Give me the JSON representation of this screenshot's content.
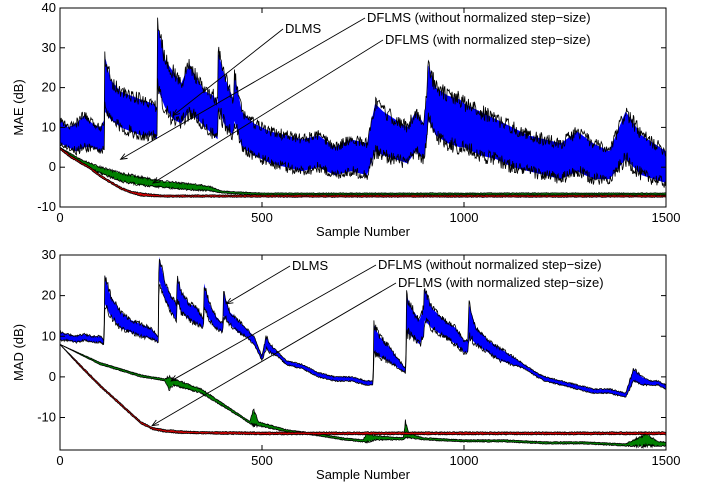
{
  "chart_data": [
    {
      "type": "line",
      "xlabel": "Sample Number",
      "ylabel": "MAE (dB)",
      "xlim": [
        0,
        1500
      ],
      "ylim": [
        -10,
        40
      ],
      "xticks": [
        0,
        500,
        1000,
        1500
      ],
      "yticks": [
        -10,
        0,
        10,
        20,
        30,
        40
      ],
      "grid": false,
      "annotations": [
        {
          "text": "DLMS",
          "target": [
            280,
            13
          ]
        },
        {
          "text": "DFLMS (without normalized step−size)",
          "target": [
            150,
            2
          ]
        },
        {
          "text": "DFLMS (with normalized step−size)",
          "target": [
            230,
            -4
          ]
        }
      ],
      "series": [
        {
          "color": "#0000ff",
          "x": [
            0,
            20,
            40,
            60,
            80,
            100,
            110,
            111,
            125,
            150,
            175,
            200,
            230,
            240,
            241,
            260,
            280,
            300,
            320,
            340,
            360,
            380,
            390,
            391,
            410,
            430,
            431,
            450,
            480,
            520,
            560,
            600,
            640,
            680,
            720,
            760,
            780,
            800,
            830,
            860,
            880,
            900,
            910,
            911,
            930,
            960,
            990,
            1000,
            1040,
            1080,
            1120,
            1160,
            1200,
            1240,
            1280,
            1320,
            1360,
            1400,
            1440,
            1470,
            1500
          ],
          "upper": [
            12,
            10,
            11,
            13,
            11,
            10,
            12,
            28,
            22,
            19,
            18,
            17,
            16,
            15,
            36,
            27,
            24,
            21,
            26,
            22,
            19,
            18,
            16,
            29,
            22,
            17,
            24,
            14,
            11,
            9,
            8,
            7,
            8,
            5,
            7,
            6,
            16,
            14,
            12,
            10,
            14,
            11,
            20,
            26,
            20,
            18,
            17,
            16,
            14,
            12,
            10,
            8,
            7,
            6,
            9,
            6,
            4,
            14,
            8,
            6,
            4
          ],
          "lower": [
            6,
            5,
            4,
            5,
            5,
            4,
            5,
            14,
            12,
            10,
            9,
            8,
            8,
            7,
            20,
            15,
            12,
            11,
            14,
            12,
            10,
            8,
            7,
            15,
            10,
            8,
            12,
            5,
            3,
            1,
            0,
            -1,
            0,
            -2,
            -1,
            -2,
            4,
            3,
            2,
            1,
            4,
            2,
            8,
            12,
            8,
            6,
            5,
            5,
            3,
            2,
            0,
            -1,
            -2,
            -3,
            -1,
            -3,
            -3,
            2,
            -2,
            -3,
            -4
          ]
        },
        {
          "color": "#008000",
          "x": [
            0,
            50,
            100,
            150,
            200,
            250,
            300,
            350,
            375,
            400,
            500,
            750,
            1000,
            1250,
            1500
          ],
          "upper": [
            5,
            2,
            0,
            -1.5,
            -2.5,
            -3.5,
            -4,
            -4.5,
            -5,
            -6,
            -6.5,
            -6.5,
            -6.5,
            -6.5,
            -6.5
          ],
          "lower": [
            5,
            1,
            -1.5,
            -3.5,
            -4.5,
            -5,
            -5.5,
            -5.8,
            -6,
            -6.5,
            -7,
            -7,
            -7,
            -7,
            -7
          ]
        },
        {
          "color": "#d00000",
          "x": [
            0,
            25,
            50,
            75,
            100,
            125,
            150,
            175,
            200,
            250,
            300,
            400,
            500,
            750,
            1000,
            1250,
            1500
          ],
          "upper": [
            5,
            3,
            1.5,
            0,
            -2,
            -3.5,
            -5,
            -6,
            -6.5,
            -7,
            -7,
            -7,
            -7,
            -7,
            -7,
            -7,
            -7
          ],
          "lower": [
            4.5,
            2.5,
            1,
            -0.5,
            -2.5,
            -4,
            -5.5,
            -6.5,
            -7.2,
            -7.5,
            -7.5,
            -7.5,
            -7.5,
            -7.5,
            -7.5,
            -7.5,
            -7.5
          ]
        }
      ]
    },
    {
      "type": "line",
      "xlabel": "Sample Number",
      "ylabel": "MAD (dB)",
      "xlim": [
        0,
        1500
      ],
      "ylim": [
        -18,
        30
      ],
      "xticks": [
        0,
        500,
        1000,
        1500
      ],
      "yticks": [
        -10,
        0,
        10,
        20,
        30
      ],
      "grid": false,
      "annotations": [
        {
          "text": "DLMS",
          "target": [
            412,
            18
          ]
        },
        {
          "text": "DFLMS (without normalized step−size)",
          "target": [
            275,
            -1
          ]
        },
        {
          "text": "DFLMS (with normalized step−size)",
          "target": [
            228,
            -12
          ]
        }
      ],
      "series": [
        {
          "color": "#0000ff",
          "x": [
            0,
            20,
            40,
            60,
            80,
            100,
            109,
            111,
            125,
            150,
            175,
            200,
            225,
            243,
            245,
            260,
            275,
            288,
            290,
            300,
            320,
            340,
            355,
            357,
            370,
            385,
            403,
            405,
            420,
            440,
            460,
            480,
            500,
            510,
            520,
            540,
            560,
            600,
            640,
            680,
            720,
            760,
            775,
            777,
            790,
            810,
            840,
            856,
            858,
            870,
            890,
            900,
            902,
            920,
            950,
            980,
            1000,
            1010,
            1012,
            1030,
            1060,
            1090,
            1120,
            1150,
            1180,
            1200,
            1240,
            1280,
            1320,
            1360,
            1400,
            1420,
            1440,
            1460,
            1480,
            1500
          ],
          "upper": [
            11,
            10.5,
            10,
            10.5,
            10,
            10,
            9,
            25,
            20,
            16,
            14,
            13,
            12,
            10,
            30,
            23,
            20,
            18,
            25,
            21,
            18,
            17,
            14,
            23,
            18,
            15,
            13,
            21,
            16,
            14,
            12,
            10,
            5,
            10,
            8,
            6,
            4,
            3,
            1,
            0,
            0,
            -1,
            -1,
            13,
            10,
            8,
            4,
            2,
            20,
            17,
            14,
            17,
            22,
            17,
            14,
            12,
            9,
            9,
            18,
            12,
            9,
            7,
            5,
            3,
            1,
            0,
            -1,
            -2,
            -3,
            -3,
            -4,
            2,
            0,
            -1,
            -1,
            -2
          ],
          "lower": [
            9,
            9,
            8.5,
            9,
            8.5,
            8.5,
            8,
            18,
            15,
            12,
            11,
            10,
            9.5,
            8.5,
            24,
            19,
            16,
            14,
            19,
            16,
            14,
            13,
            12,
            17,
            14,
            12,
            11,
            15,
            13,
            11,
            10,
            8,
            4,
            7,
            6,
            5,
            3,
            2,
            0,
            -1,
            -1,
            -2,
            -2,
            6,
            5,
            4,
            2,
            1,
            11,
            10,
            8,
            10,
            14,
            12,
            10,
            8,
            6,
            6,
            10,
            8,
            6,
            4,
            3,
            2,
            0,
            -1,
            -2,
            -3,
            -4,
            -4,
            -5,
            -1,
            -2,
            -2,
            -2,
            -3
          ]
        },
        {
          "color": "#008000",
          "x": [
            0,
            100,
            200,
            260,
            270,
            280,
            350,
            440,
            470,
            480,
            490,
            560,
            640,
            700,
            750,
            760,
            780,
            850,
            855,
            865,
            900,
            1000,
            1100,
            1200,
            1300,
            1400,
            1450,
            1480,
            1500
          ],
          "upper": [
            8,
            3.5,
            0.5,
            -0.5,
            0,
            -0.5,
            -3,
            -9,
            -11,
            -8,
            -11,
            -13,
            -14,
            -15,
            -15.5,
            -14,
            -14.5,
            -15,
            -11,
            -14,
            -15,
            -15.5,
            -15.5,
            -16,
            -16,
            -16.5,
            -14,
            -16,
            -16
          ],
          "lower": [
            8,
            3,
            0,
            -1,
            -3,
            -2,
            -4,
            -9.5,
            -11.5,
            -12,
            -12,
            -13.5,
            -14.5,
            -15.5,
            -16,
            -16,
            -15.5,
            -15.5,
            -15,
            -15,
            -15.5,
            -16,
            -16,
            -16.5,
            -16.5,
            -17,
            -17,
            -17,
            -17
          ]
        },
        {
          "color": "#d00000",
          "x": [
            0,
            50,
            100,
            150,
            200,
            230,
            260,
            300,
            350,
            400,
            500,
            600,
            700,
            800,
            900,
            1000,
            1100,
            1200,
            1300,
            1400,
            1500
          ],
          "upper": [
            8,
            3,
            -2,
            -6.5,
            -11,
            -12.5,
            -13,
            -13.3,
            -13.5,
            -13.5,
            -13.6,
            -13.6,
            -13.6,
            -13.6,
            -13.6,
            -13.6,
            -13.6,
            -13.6,
            -13.6,
            -13.6,
            -13.6
          ],
          "lower": [
            8,
            2.5,
            -2.5,
            -7,
            -11.5,
            -13,
            -13.6,
            -13.9,
            -14,
            -14.1,
            -14.2,
            -14.2,
            -14.2,
            -14.2,
            -14.2,
            -14.2,
            -14.2,
            -14.2,
            -14.2,
            -14.2,
            -14.2
          ]
        }
      ]
    }
  ]
}
